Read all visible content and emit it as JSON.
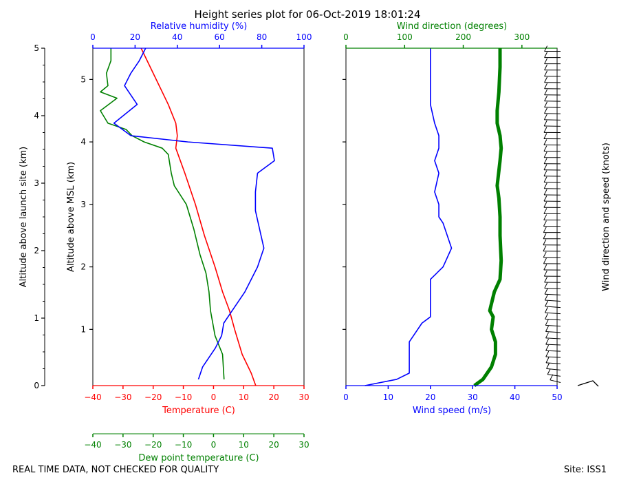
{
  "colors": {
    "temperature": "#ff0000",
    "dewpoint": "#008000",
    "humidity": "#0000ff",
    "wind_speed": "#0000ff",
    "wind_direction": "#008000",
    "axis": "#000000"
  },
  "chart_data": [
    {
      "type": "line",
      "title": "Height series plot for 06-Oct-2019 18:01:24",
      "ylabel_left": "Altitude above launch site (km)",
      "ylabel_inner": "Altitude above MSL (km)",
      "axes": {
        "temperature": {
          "label": "Temperature (C)",
          "range": [
            -40,
            30
          ],
          "ticks": [
            "−40",
            "−30",
            "−20",
            "−10",
            "0",
            "10",
            "20",
            "30"
          ]
        },
        "dewpoint": {
          "label": "Dew point temperature (C)",
          "range": [
            -40,
            30
          ],
          "ticks": [
            "−40",
            "−30",
            "−20",
            "−10",
            "0",
            "10",
            "20",
            "30"
          ]
        },
        "humidity": {
          "label": "Relative humidity (%)",
          "range": [
            0,
            100
          ],
          "ticks": [
            "0",
            "20",
            "40",
            "60",
            "80",
            "100"
          ]
        },
        "altitude_msl": {
          "range": [
            0.1,
            5.5
          ],
          "ticks": [
            "1",
            "2",
            "3",
            "4",
            "5"
          ]
        },
        "altitude_launch": {
          "range": [
            0,
            5
          ],
          "ticks": [
            "0",
            "1",
            "2",
            "3",
            "4",
            "5"
          ]
        }
      },
      "series": [
        {
          "name": "Temperature",
          "points": [
            [
              14.0,
              0.1
            ],
            [
              12.5,
              0.3
            ],
            [
              9.5,
              0.6
            ],
            [
              7.0,
              1.0
            ],
            [
              5.3,
              1.3
            ],
            [
              3.0,
              1.6
            ],
            [
              0.5,
              2.0
            ],
            [
              -3.0,
              2.5
            ],
            [
              -6.0,
              3.0
            ],
            [
              -9.5,
              3.5
            ],
            [
              -12.5,
              3.9
            ],
            [
              -12.0,
              4.1
            ],
            [
              -12.5,
              4.3
            ],
            [
              -15.0,
              4.6
            ],
            [
              -19.0,
              5.0
            ],
            [
              -22.0,
              5.3
            ],
            [
              -24.0,
              5.5
            ]
          ]
        },
        {
          "name": "Dew point",
          "points": [
            [
              3.5,
              0.2
            ],
            [
              3.0,
              0.6
            ],
            [
              0.5,
              0.9
            ],
            [
              -1.0,
              1.3
            ],
            [
              -1.5,
              1.6
            ],
            [
              -2.5,
              1.9
            ],
            [
              -4.5,
              2.2
            ],
            [
              -6.5,
              2.6
            ],
            [
              -9.0,
              3.0
            ],
            [
              -13.0,
              3.3
            ],
            [
              -14.0,
              3.5
            ],
            [
              -15.0,
              3.8
            ],
            [
              -17.0,
              3.9
            ],
            [
              -23.0,
              4.0
            ],
            [
              -27.0,
              4.1
            ],
            [
              -29.0,
              4.2
            ],
            [
              -35.0,
              4.3
            ],
            [
              -37.5,
              4.5
            ],
            [
              -32.0,
              4.7
            ],
            [
              -37.5,
              4.8
            ],
            [
              -35.0,
              4.9
            ],
            [
              -35.5,
              5.1
            ],
            [
              -34.0,
              5.3
            ],
            [
              -34.0,
              5.5
            ]
          ]
        },
        {
          "name": "Relative humidity",
          "points": [
            [
              50,
              0.2
            ],
            [
              52,
              0.4
            ],
            [
              58,
              0.7
            ],
            [
              61,
              0.9
            ],
            [
              62,
              1.1
            ],
            [
              66,
              1.3
            ],
            [
              72,
              1.6
            ],
            [
              78,
              2.0
            ],
            [
              81,
              2.3
            ],
            [
              79,
              2.6
            ],
            [
              77,
              2.9
            ],
            [
              77,
              3.2
            ],
            [
              78,
              3.5
            ],
            [
              86,
              3.7
            ],
            [
              85,
              3.9
            ],
            [
              45,
              4.0
            ],
            [
              18,
              4.1
            ],
            [
              10,
              4.3
            ],
            [
              21,
              4.6
            ],
            [
              17,
              4.8
            ],
            [
              15,
              4.9
            ],
            [
              18,
              5.1
            ],
            [
              22,
              5.3
            ],
            [
              25,
              5.5
            ]
          ]
        }
      ]
    },
    {
      "type": "line",
      "axes": {
        "wind_speed": {
          "label": "Wind speed (m/s)",
          "range": [
            0,
            50
          ],
          "ticks": [
            "0",
            "10",
            "20",
            "30",
            "40",
            "50"
          ]
        },
        "wind_direction": {
          "label": "Wind direction (degrees)",
          "range": [
            0,
            360
          ],
          "ticks": [
            "0",
            "100",
            "200",
            "300"
          ]
        },
        "barbs": {
          "label": "Wind direction and speed (knots)"
        }
      },
      "series": [
        {
          "name": "Wind speed",
          "points": [
            [
              4.5,
              0.1
            ],
            [
              12,
              0.2
            ],
            [
              15,
              0.3
            ],
            [
              15,
              0.4
            ],
            [
              15,
              0.6
            ],
            [
              15,
              0.8
            ],
            [
              16,
              0.9
            ],
            [
              18,
              1.1
            ],
            [
              20,
              1.2
            ],
            [
              20,
              1.4
            ],
            [
              20,
              1.6
            ],
            [
              20,
              1.8
            ],
            [
              23,
              2.0
            ],
            [
              25,
              2.3
            ],
            [
              24,
              2.5
            ],
            [
              23,
              2.7
            ],
            [
              22,
              2.8
            ],
            [
              22,
              3.0
            ],
            [
              21,
              3.2
            ],
            [
              22,
              3.5
            ],
            [
              21,
              3.7
            ],
            [
              22,
              3.9
            ],
            [
              22,
              4.1
            ],
            [
              21,
              4.3
            ],
            [
              20,
              4.6
            ],
            [
              20,
              4.9
            ],
            [
              20,
              5.2
            ],
            [
              20,
              5.5
            ]
          ]
        },
        {
          "name": "Wind direction",
          "points": [
            [
              225,
              0.1
            ],
            [
              240,
              0.2
            ],
            [
              255,
              0.4
            ],
            [
              262,
              0.6
            ],
            [
              262,
              0.8
            ],
            [
              255,
              1.0
            ],
            [
              258,
              1.2
            ],
            [
              252,
              1.3
            ],
            [
              260,
              1.6
            ],
            [
              270,
              1.8
            ],
            [
              272,
              2.1
            ],
            [
              270,
              2.5
            ],
            [
              270,
              2.8
            ],
            [
              268,
              3.1
            ],
            [
              265,
              3.3
            ],
            [
              270,
              3.7
            ],
            [
              272,
              3.9
            ],
            [
              270,
              4.1
            ],
            [
              265,
              4.3
            ],
            [
              265,
              4.5
            ],
            [
              268,
              4.8
            ],
            [
              270,
              5.2
            ],
            [
              270,
              5.5
            ]
          ]
        }
      ]
    }
  ],
  "footer": {
    "left": "REAL TIME DATA, NOT CHECKED FOR QUALITY",
    "right": "Site: ISS1"
  }
}
